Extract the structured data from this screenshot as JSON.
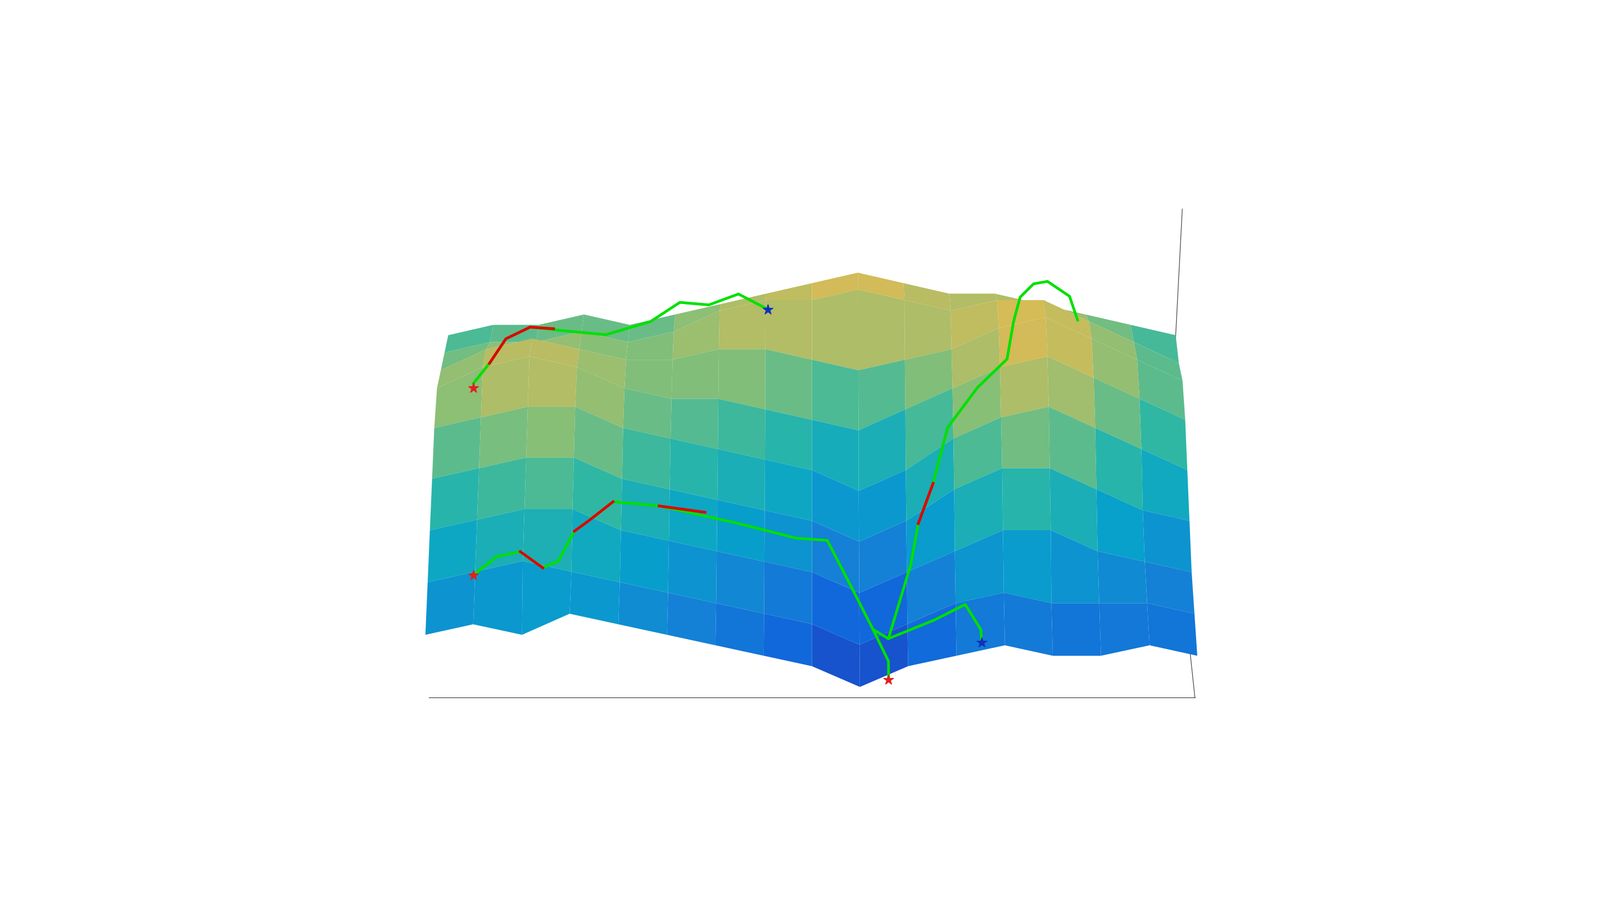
{
  "chart_data": {
    "type": "surface3d",
    "x": [
      0,
      6.25,
      12.5,
      18.75,
      25,
      31.25,
      37.5,
      43.75,
      50,
      56.25,
      62.5,
      68.75,
      75,
      81.25,
      87.5,
      93.75,
      100
    ],
    "y": [
      0,
      6.25,
      12.5,
      18.75,
      25,
      31.25,
      37.5,
      43.75,
      50
    ],
    "z": [
      [
        3,
        3.5,
        3,
        4,
        3.5,
        3,
        2.5,
        2,
        1.5,
        0.5,
        1.5,
        2,
        2.5,
        2,
        2,
        2.5,
        2
      ],
      [
        4,
        4.5,
        5,
        4.5,
        4,
        3.5,
        3,
        2.5,
        2,
        1,
        2,
        3,
        3.5,
        3,
        3,
        3,
        2.5
      ],
      [
        5,
        5.5,
        6,
        6,
        5,
        4.5,
        4,
        3.5,
        3,
        2,
        3,
        4,
        5,
        5,
        4,
        3.5,
        3
      ],
      [
        6,
        6.5,
        7,
        7,
        6,
        5.5,
        5,
        4.5,
        4,
        3,
        4,
        5.5,
        6.5,
        6.5,
        5.5,
        4.5,
        4
      ],
      [
        7,
        7.5,
        8,
        8,
        7,
        6.5,
        6,
        5.5,
        5,
        4,
        5,
        6.5,
        7.5,
        8,
        7,
        6,
        5
      ],
      [
        7.5,
        8.5,
        9,
        8.5,
        7.5,
        7,
        7,
        6.5,
        6,
        5.5,
        6.5,
        7.5,
        8.5,
        9,
        8,
        7,
        6
      ],
      [
        7,
        8,
        8.5,
        8,
        7.5,
        7.5,
        8,
        8,
        7.5,
        7,
        7.5,
        8,
        9,
        9.5,
        8.5,
        7.5,
        6.5
      ],
      [
        6.5,
        7,
        7,
        7.5,
        7,
        7.5,
        8.5,
        9,
        9,
        9.5,
        9,
        8.5,
        9,
        9,
        8,
        7,
        6
      ],
      [
        6,
        6.5,
        6.5,
        7,
        6.5,
        7,
        7.5,
        8,
        8.5,
        9,
        8.5,
        8,
        8,
        7.5,
        7,
        6.5,
        6
      ]
    ],
    "xlim": [
      0,
      100
    ],
    "ylim": [
      0,
      50
    ],
    "zlim": [
      0,
      12
    ],
    "tick_labels": false,
    "grid": false,
    "series": [
      {
        "type": "line",
        "color": "#00e000",
        "line_style": "solid",
        "x": [
          5,
          7,
          9,
          12,
          16,
          22,
          28,
          32,
          36,
          40,
          44
        ],
        "y": [
          30,
          33,
          37,
          41,
          44,
          44,
          46,
          48,
          46,
          48,
          45
        ],
        "z": [
          8.0,
          8.3,
          8.6,
          8.3,
          7.5,
          7.3,
          7.5,
          8.0,
          8.3,
          8.4,
          8.3
        ]
      },
      {
        "type": "line",
        "color": "#e00000",
        "line_style": "solid",
        "x": [
          7,
          9,
          12,
          15
        ],
        "y": [
          33,
          37,
          41,
          43
        ],
        "z": [
          8.3,
          8.6,
          8.3,
          7.8
        ]
      },
      {
        "type": "line",
        "color": "#00e000",
        "line_style": "solid",
        "x": [
          6,
          9,
          12,
          15,
          17,
          19,
          21,
          24,
          30,
          40,
          48,
          52,
          55,
          58,
          60,
          60
        ],
        "y": [
          6,
          8,
          9,
          7,
          8,
          11,
          12,
          14,
          14,
          14,
          13,
          13,
          10,
          6,
          3,
          1
        ],
        "z": [
          4.4,
          4.8,
          4.8,
          4.5,
          4.6,
          5.3,
          5.6,
          6.0,
          5.8,
          5.0,
          4.5,
          4.4,
          3.0,
          1.8,
          1.0,
          0.6
        ]
      },
      {
        "type": "line",
        "color": "#e00000",
        "line_style": "solid",
        "x": [
          12,
          15
        ],
        "y": [
          9,
          7
        ],
        "z": [
          4.8,
          4.5
        ]
      },
      {
        "type": "line",
        "color": "#e00000",
        "line_style": "solid",
        "x": [
          19,
          21,
          24
        ],
        "y": [
          11,
          12,
          14
        ],
        "z": [
          5.3,
          5.6,
          6.0
        ]
      },
      {
        "type": "line",
        "color": "#e00000",
        "line_style": "solid",
        "x": [
          30,
          36
        ],
        "y": [
          14,
          14
        ],
        "z": [
          5.8,
          5.5
        ]
      },
      {
        "type": "line",
        "color": "#00e000",
        "line_style": "solid",
        "x": [
          58,
          60,
          66,
          70,
          72,
          72
        ],
        "y": [
          6,
          5,
          5,
          6,
          3,
          1
        ],
        "z": [
          1.8,
          1.6,
          2.5,
          3.0,
          2.5,
          2.4
        ]
      },
      {
        "type": "line",
        "color": "#00e000",
        "line_style": "solid",
        "x": [
          60,
          63,
          64,
          66,
          68,
          72,
          76,
          77,
          78,
          80,
          82,
          85,
          86
        ],
        "y": [
          5,
          12,
          16,
          20,
          26,
          30,
          33,
          38,
          42,
          46,
          48,
          47,
          44
        ],
        "z": [
          1.6,
          3.5,
          4.5,
          5.5,
          6.8,
          7.8,
          8.5,
          9.2,
          9.5,
          9.3,
          9.0,
          8.5,
          8.0
        ]
      },
      {
        "type": "line",
        "color": "#e00000",
        "line_style": "solid",
        "x": [
          64,
          66
        ],
        "y": [
          16,
          20
        ],
        "z": [
          4.5,
          5.5
        ]
      },
      {
        "type": "scatter",
        "marker": "*",
        "color": "#e02020",
        "x": [
          5,
          6,
          60
        ],
        "y": [
          30,
          6,
          1
        ],
        "z": [
          7.8,
          4.4,
          0.6
        ]
      },
      {
        "type": "scatter",
        "marker": "*",
        "color": "#1030c0",
        "x": [
          44,
          72
        ],
        "y": [
          45,
          1
        ],
        "z": [
          8.3,
          2.4
        ]
      }
    ]
  }
}
